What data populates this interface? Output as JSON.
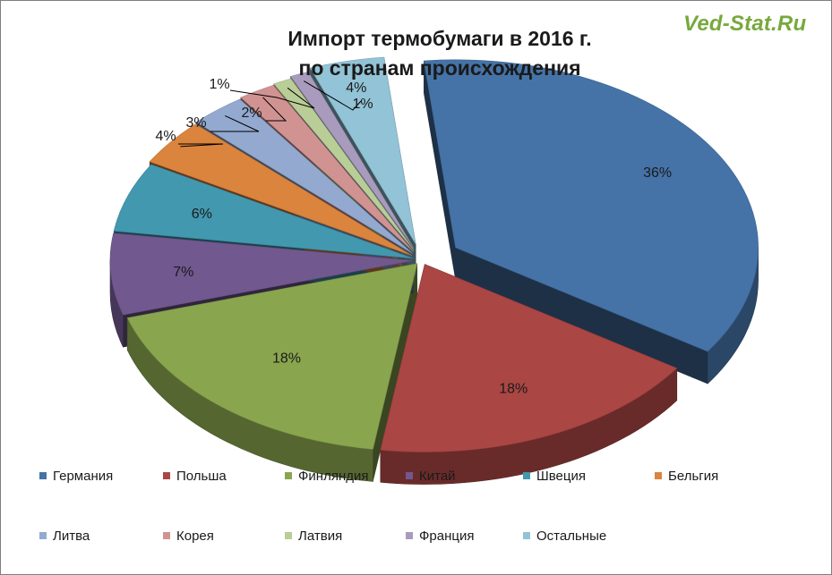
{
  "watermark": "Ved-Stat.Ru",
  "chart_data": {
    "type": "pie",
    "title": "Импорт термобумаги в 2016 г. по странам происхождения",
    "title_lines": [
      "Импорт термобумаги в 2016 г.",
      "по странам происхождения"
    ],
    "series": [
      {
        "categories": [
          "Германия",
          "Польша",
          "Финляндия",
          "Китай",
          "Швеция",
          "Бельгия",
          "Литва",
          "Корея",
          "Латвия",
          "Франция",
          "Остальные"
        ],
        "values": [
          36,
          18,
          18,
          7,
          6,
          4,
          3,
          2,
          1,
          1,
          4
        ],
        "labels": [
          "36%",
          "18%",
          "18%",
          "7%",
          "6%",
          "4%",
          "3%",
          "2%",
          "1%",
          "1%",
          "4%"
        ],
        "colors": [
          "#4573a7",
          "#aa4644",
          "#89a54e",
          "#71588f",
          "#4298af",
          "#db843d",
          "#93a9cf",
          "#d19392",
          "#b9cd96",
          "#a99bbd",
          "#92c3d6"
        ]
      }
    ],
    "legend_position": "bottom",
    "style": "exploded-3d"
  }
}
